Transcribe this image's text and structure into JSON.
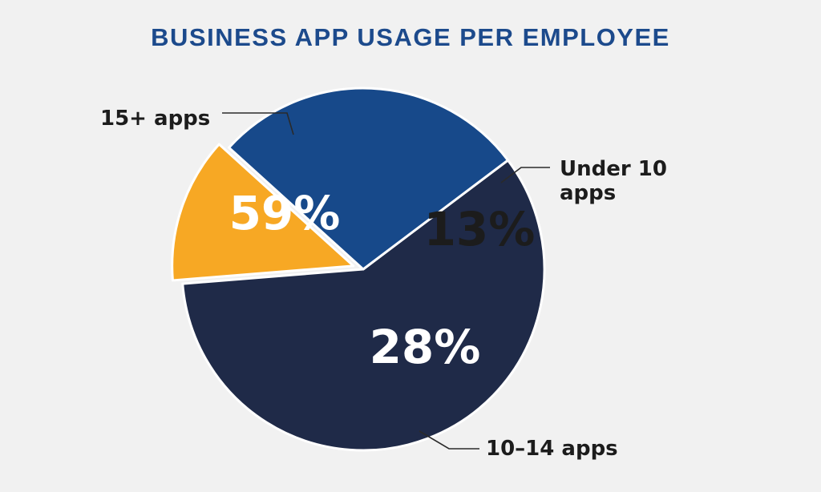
{
  "chart_data": {
    "type": "pie",
    "title": "BUSINESS APP USAGE PER EMPLOYEE",
    "slices": [
      {
        "label": "15+ apps",
        "label_lines": [
          "15+ apps"
        ],
        "value": 59,
        "value_label": "59%",
        "color": "#1f2a48",
        "text_color": "#ffffff"
      },
      {
        "label": "Under 10 apps",
        "label_lines": [
          "Under 10",
          "apps"
        ],
        "value": 13,
        "value_label": "13%",
        "color": "#f7a824",
        "text_color": "#1c1c1c"
      },
      {
        "label": "10–14 apps",
        "label_lines": [
          "10–14 apps"
        ],
        "value": 28,
        "value_label": "28%",
        "color": "#17498a",
        "text_color": "#ffffff"
      }
    ],
    "legend_placement": "outside-labels",
    "grid": false
  },
  "colors": {
    "background": "#f1f1f1",
    "title": "#1c4a8c",
    "separator": "#ffffff"
  }
}
